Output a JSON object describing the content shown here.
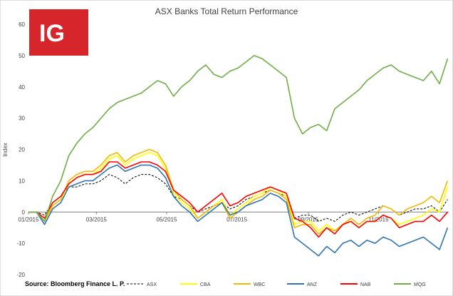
{
  "brand": {
    "logo_text": "IG",
    "logo_color": "#d7262b"
  },
  "source_note": "Source: Bloomberg Finance L. P.",
  "chart_data": {
    "type": "line",
    "title": "ASX Banks Total Return Performance",
    "xlabel": "",
    "ylabel": "Index",
    "ylim": [
      -20,
      60
    ],
    "yticks": [
      -20,
      -10,
      0,
      10,
      20,
      30,
      40,
      50,
      60
    ],
    "x_tick_labels": [
      "01/2015",
      "03/2015",
      "05/2015",
      "07/2015",
      "09/2015",
      "11/2015"
    ],
    "x_tick_dates": [
      "2015-01-01",
      "2015-03-01",
      "2015-05-01",
      "2015-07-01",
      "2015-09-01",
      "2015-11-01"
    ],
    "xlim": [
      "2015-01-01",
      "2016-01-01"
    ],
    "grid": false,
    "legend_position": "bottom-right",
    "dates": [
      "2015-01-01",
      "2015-01-08",
      "2015-01-15",
      "2015-01-22",
      "2015-01-29",
      "2015-02-05",
      "2015-02-12",
      "2015-02-19",
      "2015-02-26",
      "2015-03-05",
      "2015-03-12",
      "2015-03-19",
      "2015-03-26",
      "2015-04-02",
      "2015-04-09",
      "2015-04-16",
      "2015-04-23",
      "2015-04-30",
      "2015-05-07",
      "2015-05-14",
      "2015-05-21",
      "2015-05-28",
      "2015-06-04",
      "2015-06-11",
      "2015-06-18",
      "2015-06-25",
      "2015-07-02",
      "2015-07-09",
      "2015-07-16",
      "2015-07-23",
      "2015-07-30",
      "2015-08-06",
      "2015-08-13",
      "2015-08-20",
      "2015-08-27",
      "2015-09-03",
      "2015-09-10",
      "2015-09-17",
      "2015-09-24",
      "2015-10-01",
      "2015-10-08",
      "2015-10-15",
      "2015-10-22",
      "2015-10-29",
      "2015-11-05",
      "2015-11-12",
      "2015-11-19",
      "2015-11-26",
      "2015-12-03",
      "2015-12-10",
      "2015-12-17",
      "2015-12-24",
      "2015-12-31"
    ],
    "series": [
      {
        "name": "ASX",
        "color": "#000000",
        "dash": true,
        "values": [
          0,
          0,
          -1,
          3,
          5,
          8,
          8,
          9,
          9,
          10,
          12,
          11,
          9,
          11,
          12,
          12,
          11,
          9,
          5,
          4,
          2,
          0,
          1,
          2,
          3,
          1,
          2,
          4,
          5,
          6,
          7,
          6,
          5,
          -2,
          -1,
          -1,
          -3,
          -2,
          -3,
          -1,
          0,
          -1,
          0,
          1,
          2,
          1,
          -1,
          0,
          1,
          1,
          2,
          0,
          4
        ]
      },
      {
        "name": "CBA",
        "color": "#ffff00",
        "dash": false,
        "values": [
          0,
          0,
          -2,
          2,
          4,
          9,
          11,
          12,
          12,
          14,
          17,
          18,
          15,
          17,
          18,
          19,
          18,
          14,
          6,
          3,
          1,
          -2,
          0,
          2,
          4,
          -1,
          1,
          3,
          5,
          6,
          8,
          7,
          5,
          -4,
          -3,
          -3,
          -6,
          -4,
          -6,
          -4,
          -3,
          -5,
          -3,
          -3,
          -1,
          -2,
          -4,
          -3,
          -2,
          -1,
          1,
          0,
          8
        ]
      },
      {
        "name": "WBC",
        "color": "#f5b800",
        "dash": false,
        "values": [
          0,
          0,
          -3,
          2,
          4,
          10,
          12,
          13,
          13,
          15,
          18,
          19,
          16,
          18,
          19,
          20,
          19,
          15,
          7,
          4,
          2,
          -2,
          0,
          2,
          3,
          -2,
          0,
          2,
          4,
          5,
          7,
          6,
          4,
          -5,
          -4,
          -4,
          -7,
          -5,
          -6,
          -4,
          -2,
          -4,
          -2,
          -1,
          2,
          1,
          -1,
          1,
          2,
          3,
          5,
          3,
          10
        ]
      },
      {
        "name": "ANZ",
        "color": "#2e75b6",
        "dash": false,
        "values": [
          0,
          0,
          -4,
          1,
          3,
          8,
          9,
          10,
          10,
          12,
          14,
          15,
          13,
          14,
          15,
          15,
          14,
          11,
          5,
          2,
          0,
          -3,
          -1,
          1,
          3,
          -1,
          0,
          2,
          3,
          4,
          6,
          5,
          3,
          -8,
          -10,
          -12,
          -14,
          -11,
          -13,
          -10,
          -9,
          -11,
          -9,
          -10,
          -8,
          -9,
          -11,
          -10,
          -9,
          -8,
          -10,
          -12,
          -5
        ]
      },
      {
        "name": "NAB",
        "color": "#ff0000",
        "dash": false,
        "values": [
          0,
          0,
          -2,
          3,
          5,
          9,
          11,
          12,
          12,
          13,
          16,
          16,
          14,
          15,
          16,
          16,
          15,
          13,
          7,
          5,
          3,
          0,
          2,
          4,
          6,
          2,
          3,
          5,
          6,
          7,
          8,
          7,
          6,
          -2,
          -3,
          -5,
          -8,
          -5,
          -7,
          -4,
          -3,
          -5,
          -3,
          -3,
          -1,
          -2,
          -5,
          -4,
          -3,
          -3,
          -1,
          -3,
          0
        ]
      },
      {
        "name": "MQG",
        "color": "#70ad47",
        "dash": false,
        "values": [
          0,
          0,
          -3,
          5,
          10,
          18,
          22,
          25,
          27,
          30,
          33,
          35,
          36,
          37,
          38,
          40,
          42,
          41,
          37,
          40,
          42,
          45,
          47,
          44,
          43,
          45,
          46,
          48,
          50,
          49,
          47,
          45,
          43,
          30,
          25,
          27,
          28,
          26,
          33,
          35,
          37,
          39,
          42,
          44,
          46,
          47,
          45,
          44,
          43,
          42,
          45,
          41,
          49
        ]
      }
    ]
  }
}
